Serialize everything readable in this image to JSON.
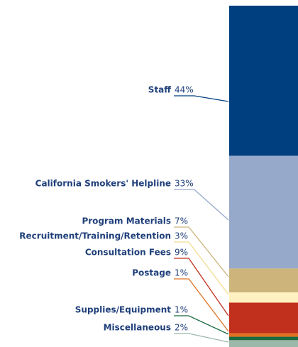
{
  "chart_data": {
    "type": "stacked-bar",
    "categories": [
      "Staff",
      "California Smokers' Helpline",
      "Program Materials",
      "Recruitment/Training/Retention",
      "Consultation Fees",
      "Postage",
      "Supplies/Equipment",
      "Miscellaneous"
    ],
    "values": [
      44,
      33,
      7,
      3,
      9,
      1,
      1,
      2
    ],
    "value_labels": [
      "44%",
      "33%",
      "7%",
      "3%",
      "9%",
      "1%",
      "1%",
      "2%"
    ],
    "colors": [
      "#003f7f",
      "#96a9cb",
      "#ccb47a",
      "#fff2c0",
      "#c0301c",
      "#e07020",
      "#1a6a40",
      "#9cb8a8"
    ]
  }
}
